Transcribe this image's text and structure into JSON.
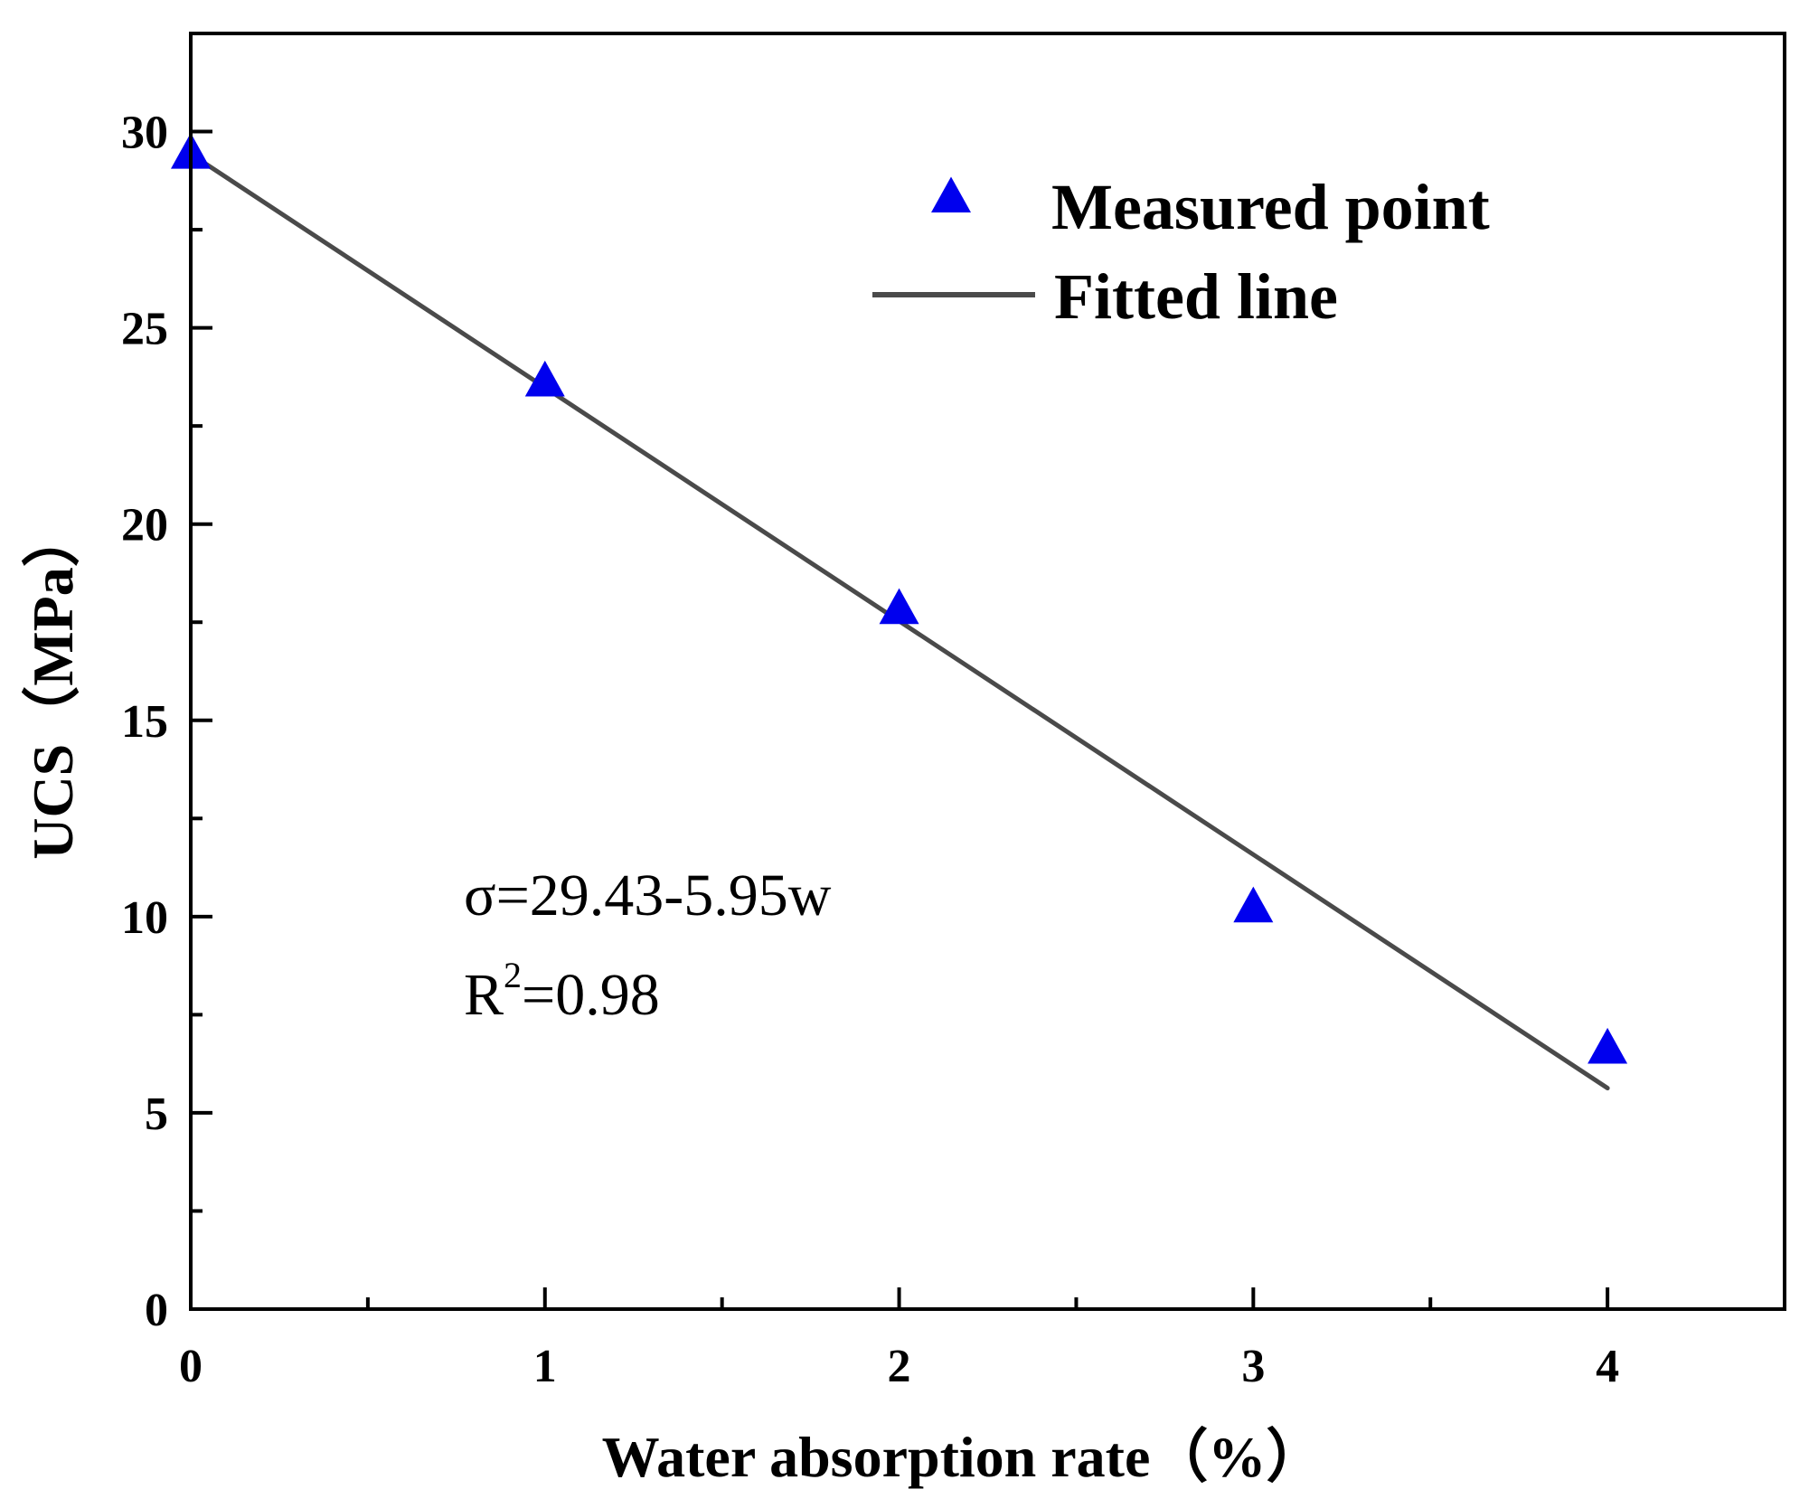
{
  "chart_data": {
    "type": "scatter",
    "xlabel": "Water absorption rate（%）",
    "ylabel": "UCS（MPa）",
    "xlim": [
      0,
      4.5
    ],
    "ylim": [
      0,
      32.5
    ],
    "x_ticks": [
      0,
      1,
      2,
      3,
      4
    ],
    "y_ticks": [
      0,
      5,
      10,
      15,
      20,
      25,
      30
    ],
    "x_minor_step": 0.5,
    "y_minor_step": 2.5,
    "grid": false,
    "legend_position": "top-right",
    "series": [
      {
        "name": "Measured point",
        "type": "scatter",
        "marker": "triangle",
        "color": "#0000ee",
        "x": [
          0,
          1,
          2,
          3,
          4
        ],
        "y": [
          29.4,
          23.6,
          17.8,
          10.2,
          6.6
        ]
      },
      {
        "name": "Fitted line",
        "type": "line",
        "color": "#4a4a4a",
        "x": [
          0,
          4
        ],
        "y": [
          29.43,
          5.63
        ]
      }
    ],
    "annotations": {
      "equation": "σ=29.43-5.95w",
      "r2_prefix": "R",
      "r2_sup": "2",
      "r2_suffix": "=0.98"
    }
  }
}
